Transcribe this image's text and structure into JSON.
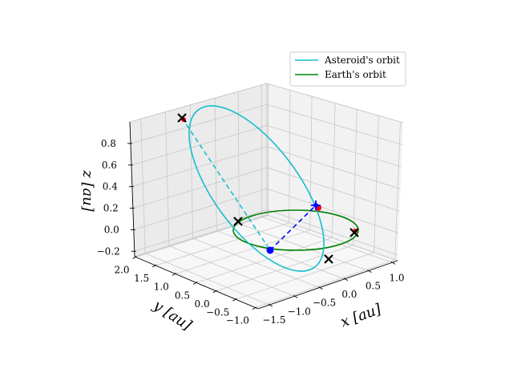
{
  "chart_data": {
    "type": "line",
    "projection": "3d",
    "series": [
      {
        "name": "Asteroid's orbit",
        "color": "#17becf"
      },
      {
        "name": "Earth's orbit",
        "color": "#008000"
      }
    ],
    "axes": {
      "x": {
        "label": "x [au]",
        "ticks": [
          "−1.5",
          "−1.0",
          "−0.5",
          "0.0",
          "0.5",
          "1.0"
        ]
      },
      "y": {
        "label": "y [au]",
        "ticks": [
          "2.0",
          "1.5",
          "1.0",
          "0.5",
          "0.0",
          "−0.5",
          "−1.0"
        ]
      },
      "z": {
        "label": "z [au]",
        "ticks": [
          "0.8",
          "0.6",
          "0.4",
          "0.2",
          "0.0",
          "−0.2"
        ]
      }
    },
    "markers": {
      "cross_black": 4,
      "red_points": 3,
      "blue_points": 2
    },
    "legend": "top-right",
    "grid": true
  }
}
